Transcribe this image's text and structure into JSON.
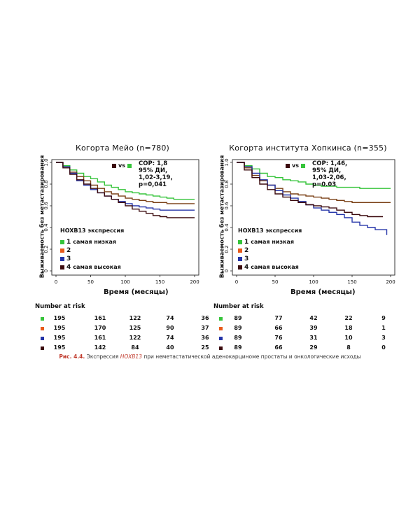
{
  "chart_data": [
    {
      "type": "line",
      "title": "Когорта Мейо (n=780)",
      "xlabel": "Время (месяцы)",
      "ylabel": "Выживаемость без метастазирования",
      "xlim": [
        0,
        200
      ],
      "ylim": [
        0,
        1.0
      ],
      "xticks": [
        "0",
        "50",
        "100",
        "150",
        "200"
      ],
      "yticks": [
        "0",
        "0.2",
        "0.4",
        "0.6",
        "0.8",
        "1.0"
      ],
      "stats": [
        "СОР: 1,8",
        "95% ДИ,",
        "1,02-3,19,",
        "р=0,041"
      ],
      "vs_label": "vs",
      "legend_title": "HOXB13 экспрессия",
      "series": [
        {
          "name": "1",
          "label": "самая низкая",
          "color": "#35c43a",
          "x": [
            0,
            10,
            20,
            30,
            40,
            50,
            60,
            70,
            80,
            90,
            100,
            110,
            120,
            130,
            140,
            150,
            160,
            170,
            180,
            190,
            200
          ],
          "y": [
            1.0,
            0.97,
            0.93,
            0.9,
            0.87,
            0.85,
            0.82,
            0.79,
            0.77,
            0.75,
            0.73,
            0.72,
            0.71,
            0.7,
            0.69,
            0.68,
            0.67,
            0.66,
            0.66,
            0.66,
            0.66
          ]
        },
        {
          "name": "2",
          "label": "",
          "color": "#7a4016",
          "x": [
            0,
            10,
            20,
            30,
            40,
            50,
            60,
            70,
            80,
            90,
            100,
            110,
            120,
            130,
            140,
            150,
            160,
            170,
            180,
            190,
            200
          ],
          "y": [
            1.0,
            0.96,
            0.91,
            0.87,
            0.83,
            0.79,
            0.76,
            0.73,
            0.71,
            0.69,
            0.67,
            0.66,
            0.65,
            0.64,
            0.63,
            0.63,
            0.62,
            0.62,
            0.62,
            0.62,
            0.62
          ]
        },
        {
          "name": "3",
          "label": "",
          "color": "#2434a8",
          "x": [
            0,
            10,
            20,
            30,
            40,
            50,
            60,
            70,
            80,
            90,
            100,
            110,
            120,
            130,
            140,
            150,
            160,
            170,
            180,
            190,
            200
          ],
          "y": [
            1.0,
            0.96,
            0.9,
            0.83,
            0.79,
            0.75,
            0.72,
            0.69,
            0.66,
            0.64,
            0.62,
            0.6,
            0.59,
            0.58,
            0.57,
            0.56,
            0.56,
            0.56,
            0.56,
            0.56,
            0.56
          ]
        },
        {
          "name": "4",
          "label": "самая высокая",
          "color": "#3b0a0e",
          "x": [
            0,
            10,
            20,
            30,
            40,
            50,
            60,
            70,
            80,
            90,
            100,
            110,
            120,
            130,
            140,
            150,
            160,
            170,
            180,
            190,
            200
          ],
          "y": [
            1.0,
            0.95,
            0.89,
            0.84,
            0.8,
            0.76,
            0.72,
            0.69,
            0.66,
            0.63,
            0.6,
            0.57,
            0.55,
            0.53,
            0.51,
            0.5,
            0.49,
            0.49,
            0.49,
            0.49,
            0.49
          ]
        }
      ]
    },
    {
      "type": "line",
      "title": "Когорта института Хопкинса (n=355)",
      "xlabel": "Время (месяцы)",
      "ylabel": "Выживаемость без метастазирования",
      "xlim": [
        0,
        200
      ],
      "ylim": [
        0,
        1.0
      ],
      "xticks": [
        "0",
        "50",
        "100",
        "150",
        "200"
      ],
      "yticks": [
        "0",
        "0.2",
        "0.4",
        "0.6",
        "0.8",
        "1.0"
      ],
      "stats": [
        "СОР: 1,46,",
        "95% ДИ,",
        "1,03-2,06,",
        "р=0.03"
      ],
      "vs_label": "vs",
      "legend_title": "HOXB13 экспрессия",
      "series": [
        {
          "name": "1",
          "label": "самая низкая",
          "color": "#35c43a",
          "x": [
            0,
            10,
            20,
            30,
            40,
            50,
            60,
            70,
            80,
            90,
            100,
            110,
            120,
            130,
            140,
            150,
            160,
            170,
            180,
            190,
            200
          ],
          "y": [
            1.0,
            0.97,
            0.94,
            0.9,
            0.87,
            0.86,
            0.84,
            0.83,
            0.82,
            0.8,
            0.79,
            0.78,
            0.78,
            0.77,
            0.77,
            0.77,
            0.76,
            0.76,
            0.76,
            0.76,
            0.76
          ]
        },
        {
          "name": "2",
          "label": "",
          "color": "#7a4016",
          "x": [
            0,
            10,
            20,
            30,
            40,
            50,
            60,
            70,
            80,
            90,
            100,
            110,
            120,
            130,
            140,
            150,
            160,
            170,
            180,
            190,
            200
          ],
          "y": [
            1.0,
            0.95,
            0.88,
            0.83,
            0.79,
            0.76,
            0.73,
            0.71,
            0.7,
            0.69,
            0.68,
            0.67,
            0.66,
            0.65,
            0.64,
            0.63,
            0.63,
            0.63,
            0.63,
            0.63,
            0.63
          ]
        },
        {
          "name": "3",
          "label": "",
          "color": "#2434a8",
          "x": [
            0,
            10,
            20,
            30,
            40,
            50,
            60,
            70,
            80,
            90,
            100,
            110,
            120,
            130,
            140,
            150,
            160,
            170,
            180,
            195
          ],
          "y": [
            1.0,
            0.96,
            0.9,
            0.84,
            0.79,
            0.74,
            0.7,
            0.67,
            0.64,
            0.61,
            0.58,
            0.56,
            0.54,
            0.52,
            0.49,
            0.45,
            0.42,
            0.4,
            0.38,
            0.33
          ]
        },
        {
          "name": "4",
          "label": "самая высокая",
          "color": "#3b0a0e",
          "x": [
            0,
            10,
            20,
            30,
            40,
            50,
            60,
            70,
            80,
            90,
            100,
            110,
            120,
            130,
            140,
            150,
            160,
            170,
            180,
            190
          ],
          "y": [
            1.0,
            0.93,
            0.86,
            0.8,
            0.75,
            0.71,
            0.68,
            0.65,
            0.63,
            0.61,
            0.6,
            0.59,
            0.58,
            0.56,
            0.54,
            0.52,
            0.51,
            0.5,
            0.5,
            0.5
          ]
        }
      ]
    }
  ],
  "risk_tables": [
    {
      "title": "Number at risk",
      "rows": [
        {
          "color": "#35c43a",
          "values": [
            "195",
            "161",
            "122",
            "74",
            "36"
          ]
        },
        {
          "color": "#e85a1a",
          "values": [
            "195",
            "170",
            "125",
            "90",
            "37"
          ]
        },
        {
          "color": "#2434a8",
          "values": [
            "195",
            "161",
            "122",
            "74",
            "36"
          ]
        },
        {
          "color": "#3b0a0e",
          "values": [
            "195",
            "142",
            "84",
            "40",
            "25"
          ]
        }
      ]
    },
    {
      "title": "Number at risk",
      "rows": [
        {
          "color": "#35c43a",
          "values": [
            "89",
            "77",
            "42",
            "22",
            "9"
          ]
        },
        {
          "color": "#e85a1a",
          "values": [
            "89",
            "66",
            "39",
            "18",
            "1"
          ]
        },
        {
          "color": "#2434a8",
          "values": [
            "89",
            "76",
            "31",
            "10",
            "3"
          ]
        },
        {
          "color": "#3b0a0e",
          "values": [
            "89",
            "66",
            "29",
            "8",
            "0"
          ]
        }
      ]
    }
  ],
  "legend_square_colors": {
    "1": "#35c43a",
    "2": "#e85a1a",
    "3": "#2434a8",
    "4": "#3b0a0e"
  },
  "caption": {
    "label": "Рис. 4.4.",
    "prefix": " Экспрессия ",
    "gene": "HOXB13",
    "suffix": " при неметастатической аденокарциноме простаты и онкологические исходы"
  }
}
